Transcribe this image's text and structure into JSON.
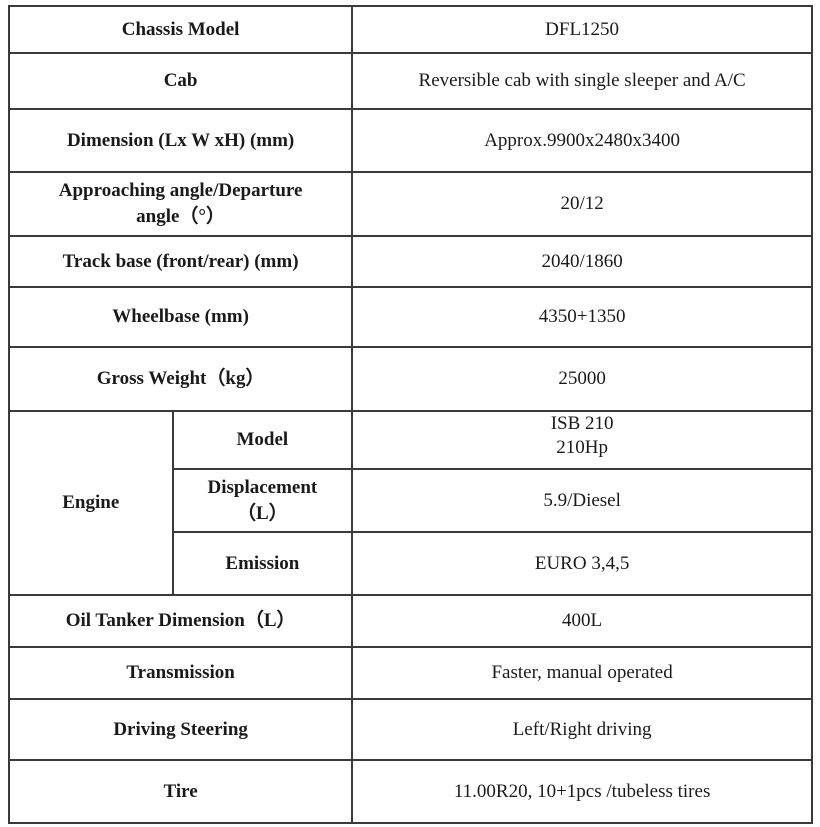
{
  "rows": {
    "chassis_model": {
      "label": "Chassis Model",
      "value": "DFL1250"
    },
    "cab": {
      "label": "Cab",
      "value": "Reversible cab with single sleeper and A/C"
    },
    "dimension": {
      "label": "Dimension (Lx W xH) (mm)",
      "value": "Approx.9900x2480x3400"
    },
    "angle": {
      "label_line1": "Approaching angle/Departure",
      "label_line2": "angle（°）",
      "value": "20/12"
    },
    "track_base": {
      "label": "Track base (front/rear) (mm)",
      "value": "2040/1860"
    },
    "wheelbase": {
      "label": "Wheelbase (mm)",
      "value": "4350+1350"
    },
    "gross_weight": {
      "label": "Gross Weight（kg）",
      "value": "25000"
    },
    "engine": {
      "label": "Engine",
      "model": {
        "label": "Model",
        "value_line1": "ISB 210",
        "value_line2": "210Hp"
      },
      "displacement": {
        "label_line1": "Displacement",
        "label_line2": "（L）",
        "value": "5.9/Diesel"
      },
      "emission": {
        "label": "Emission",
        "value": "EURO 3,4,5"
      }
    },
    "oil_tanker": {
      "label": "Oil Tanker Dimension（L）",
      "value": "400L"
    },
    "transmission": {
      "label": "Transmission",
      "value": "Faster, manual operated"
    },
    "driving_steering": {
      "label": "Driving Steering",
      "value": "Left/Right driving"
    },
    "tire": {
      "label": "Tire",
      "value": "11.00R20, 10+1pcs /tubeless tires"
    }
  }
}
